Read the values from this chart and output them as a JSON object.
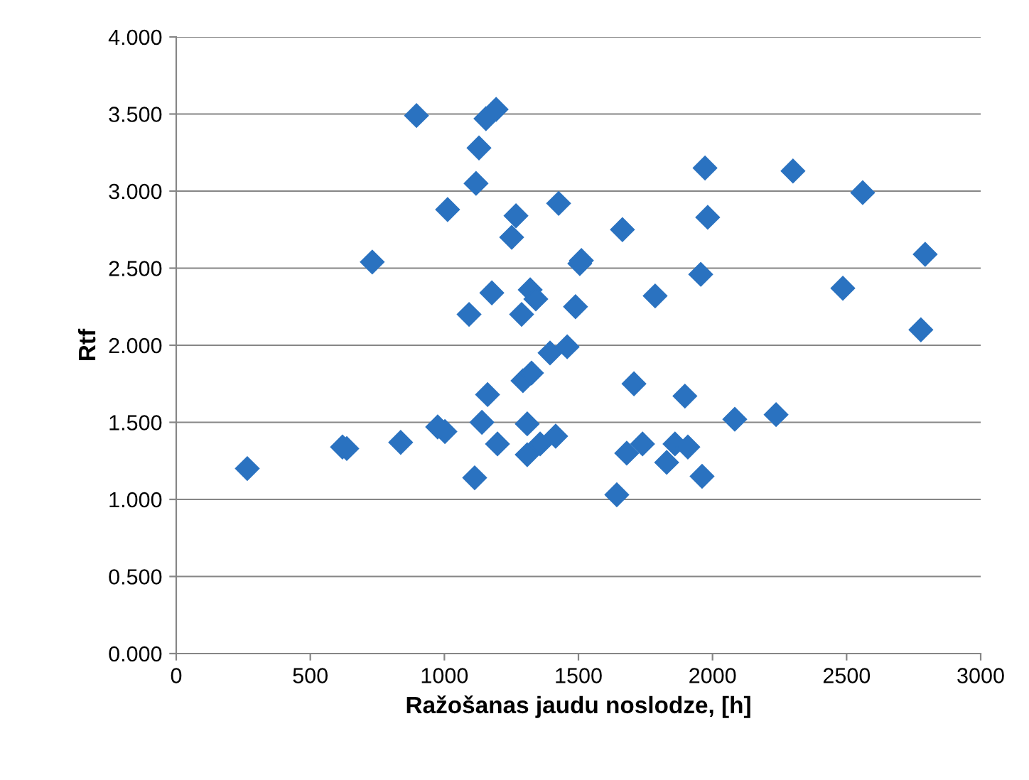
{
  "chart_data": {
    "type": "scatter",
    "xlabel": "Ražošanas jaudu noslodze, [h]",
    "ylabel": "Rtf",
    "series": [
      {
        "color": "#2a72c0",
        "x": [
          265,
          731,
          620,
          636,
          837,
          896,
          975,
          1002,
          1012,
          1092,
          1118,
          1129,
          1113,
          1140,
          1155,
          1161,
          1177,
          1198,
          1251,
          1267,
          1288,
          1293,
          1309,
          1309,
          1320,
          1325,
          1341,
          1193,
          1357,
          1394,
          1415,
          1426,
          1458,
          1489,
          1511,
          1505,
          1643,
          1664,
          1680,
          1707,
          1739,
          1786,
          1829,
          1860,
          1897,
          1908,
          1956,
          1961,
          1972,
          1982,
          2083,
          2237,
          2300,
          2486,
          2560,
          2777,
          2793
        ],
        "values": [
          1.2,
          2.54,
          1.34,
          1.33,
          1.37,
          3.49,
          1.47,
          1.44,
          2.88,
          2.2,
          3.05,
          3.28,
          1.14,
          1.5,
          3.47,
          1.68,
          2.34,
          1.36,
          2.7,
          2.84,
          2.2,
          1.77,
          1.49,
          1.29,
          2.36,
          1.82,
          2.3,
          3.53,
          1.36,
          1.95,
          1.41,
          2.92,
          1.99,
          2.25,
          2.55,
          2.53,
          1.03,
          2.75,
          1.3,
          1.75,
          1.36,
          2.32,
          1.24,
          1.36,
          1.67,
          1.34,
          2.46,
          1.15,
          3.15,
          2.83,
          1.52,
          1.55,
          3.13,
          2.37,
          2.99,
          2.1,
          2.59
        ]
      }
    ],
    "xlim": [
      0,
      3000
    ],
    "xticks": [
      0,
      500,
      1000,
      1500,
      2000,
      2500,
      3000
    ],
    "ylim": [
      0,
      4
    ],
    "yticks": [
      {
        "value": 0,
        "label": "0.000"
      },
      {
        "value": 0.5,
        "label": "0.500"
      },
      {
        "value": 1,
        "label": "1.000"
      },
      {
        "value": 1.5,
        "label": "1.500"
      },
      {
        "value": 2,
        "label": "2.000"
      },
      {
        "value": 2.5,
        "label": "2.500"
      },
      {
        "value": 3,
        "label": "3.000"
      },
      {
        "value": 3.5,
        "label": "3.500"
      },
      {
        "value": 4,
        "label": "4.000"
      }
    ],
    "grid": "y",
    "marker": "diamond"
  }
}
